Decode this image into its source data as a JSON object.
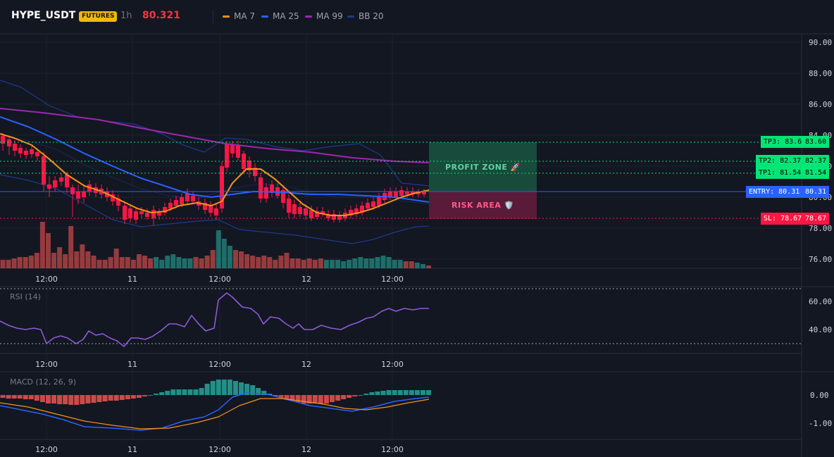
{
  "header": {
    "symbol": "HYPE_USDT",
    "badge": "FUTURES",
    "timeframe": "1h",
    "last_price": "80.321",
    "legend": [
      {
        "label": "MA 7",
        "color": "#f7931a"
      },
      {
        "label": "MA 25",
        "color": "#2962ff"
      },
      {
        "label": "MA 99",
        "color": "#9c27b0"
      },
      {
        "label": "BB 20",
        "color": "#1e3a8a"
      }
    ]
  },
  "colors": {
    "up": "#26a69a",
    "down": "#ef5350",
    "up_bright": "#00e676",
    "down_bright": "#ff1744"
  },
  "price_axis": {
    "labels": [
      "90.00",
      "88.00",
      "86.00",
      "84.00",
      "82.00",
      "80.00",
      "78.00",
      "76.00"
    ]
  },
  "time_axis": {
    "labels": [
      "12:00",
      "11",
      "12:00",
      "12",
      "12:00"
    ]
  },
  "zones": {
    "profit_label": "PROFIT ZONE 🚀",
    "risk_label": "RISK AREA 🛡️"
  },
  "levels": {
    "tp3_tag": "TP3: 83.6",
    "tp3_axis": "83.60",
    "tp2_tag": "TP2: 82.37",
    "tp2_axis": "82.37",
    "tp1_tag": "TP1: 81.54",
    "tp1_axis": "81.54",
    "entry_tag": "ENTRY: 80.31",
    "entry_axis": "80.31",
    "sl_tag": "SL: 78.67",
    "sl_axis": "78.67"
  },
  "rsi": {
    "label": "RSI (14)",
    "axis_labels": [
      "60.00",
      "40.00"
    ]
  },
  "macd": {
    "label": "MACD (12, 26, 9)",
    "axis_labels": [
      "0.00",
      "-1.00"
    ]
  }
}
